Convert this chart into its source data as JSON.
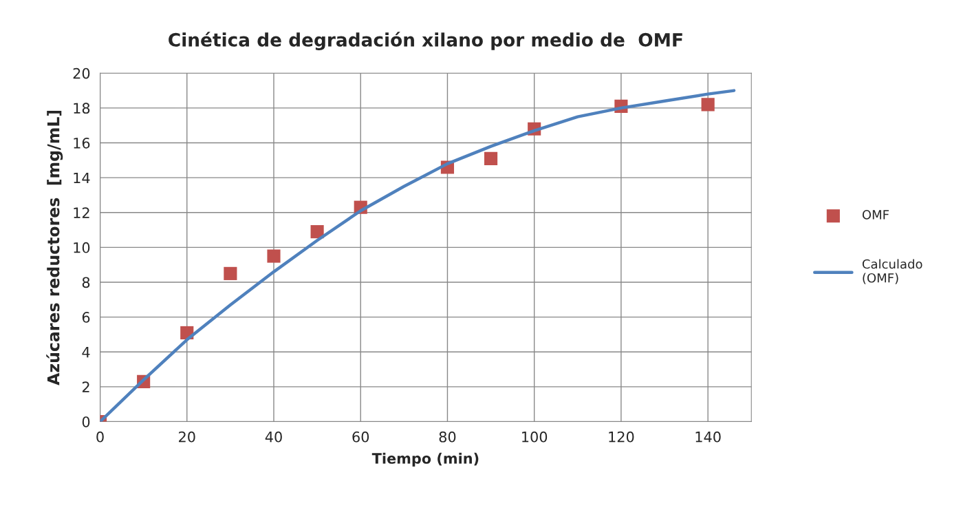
{
  "chart_data": {
    "type": "scatter",
    "title": "Cinética de degradación xilano por medio de  OMF",
    "xlabel": "Tiempo (min)",
    "ylabel": "Azúcares reductores  [mg/mL]",
    "xlim": [
      0,
      150
    ],
    "xticks": [
      0,
      20,
      40,
      60,
      80,
      100,
      120,
      140
    ],
    "ylim": [
      0,
      20
    ],
    "yticks": [
      0,
      2,
      4,
      6,
      8,
      10,
      12,
      14,
      16,
      18,
      20
    ],
    "grid": true,
    "legend": "right",
    "series": [
      {
        "name": "OMF",
        "marker": "square",
        "color": "#c0504d",
        "x": [
          0,
          10,
          20,
          30,
          40,
          50,
          60,
          80,
          90,
          100,
          120,
          140
        ],
        "values": [
          0,
          2.3,
          5.1,
          8.5,
          9.5,
          10.9,
          12.3,
          14.6,
          15.1,
          16.8,
          18.1,
          18.2
        ]
      },
      {
        "name": "Calculado (OMF)",
        "type": "line",
        "marker": "none",
        "line_style": "solid",
        "color": "#4f81bd",
        "x": [
          0,
          10,
          20,
          30,
          40,
          50,
          60,
          70,
          80,
          90,
          100,
          110,
          120,
          130,
          140,
          146
        ],
        "values": [
          0,
          2.4,
          4.7,
          6.7,
          8.6,
          10.4,
          12.1,
          13.5,
          14.8,
          15.8,
          16.7,
          17.5,
          18.0,
          18.4,
          18.8,
          19.0
        ]
      }
    ]
  }
}
